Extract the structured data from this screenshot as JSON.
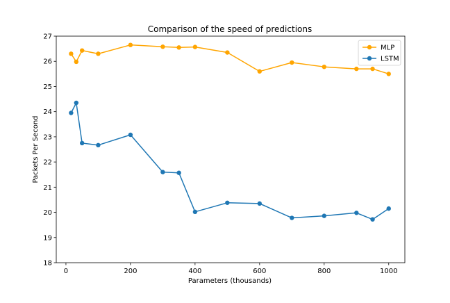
{
  "chart_data": {
    "type": "line",
    "title": "Comparison of the speed of predictions",
    "xlabel": "Parameters (thousands)",
    "ylabel": "Packets Per Second",
    "xlim": [
      -30,
      1050
    ],
    "ylim": [
      18,
      27
    ],
    "xticks": [
      0,
      200,
      400,
      600,
      800,
      1000
    ],
    "yticks": [
      18,
      19,
      20,
      21,
      22,
      23,
      24,
      25,
      26,
      27
    ],
    "grid": false,
    "legend_position": "upper right",
    "series": [
      {
        "name": "MLP",
        "color": "#ffa500",
        "marker": "circle",
        "x": [
          16,
          32,
          50,
          100,
          200,
          300,
          350,
          400,
          500,
          600,
          700,
          800,
          900,
          950,
          1000
        ],
        "y": [
          26.3,
          25.98,
          26.43,
          26.3,
          26.65,
          26.58,
          26.55,
          26.57,
          26.35,
          25.6,
          25.95,
          25.78,
          25.7,
          25.7,
          25.5
        ]
      },
      {
        "name": "LSTM",
        "color": "#1f77b4",
        "marker": "circle",
        "x": [
          16,
          32,
          50,
          100,
          200,
          300,
          350,
          400,
          500,
          600,
          700,
          800,
          900,
          950,
          1000
        ],
        "y": [
          23.95,
          24.35,
          22.75,
          22.67,
          23.08,
          21.6,
          21.57,
          20.02,
          20.38,
          20.35,
          19.78,
          19.86,
          19.98,
          19.72,
          20.15
        ]
      }
    ]
  }
}
